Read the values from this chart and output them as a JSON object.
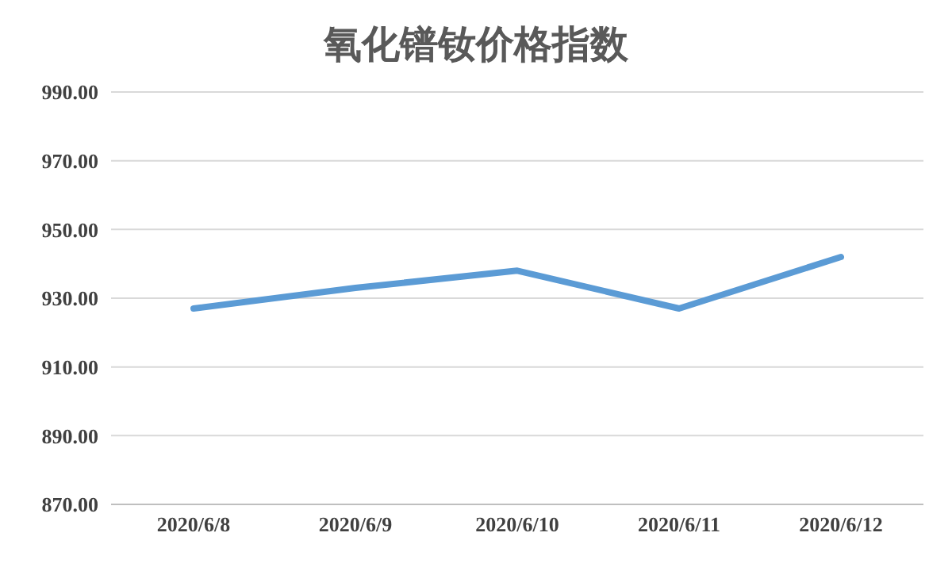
{
  "chart_data": {
    "type": "line",
    "title": "氧化镨钕价格指数",
    "categories": [
      "2020/6/8",
      "2020/6/9",
      "2020/6/10",
      "2020/6/11",
      "2020/6/12"
    ],
    "series": [
      {
        "color": "#5b9bd5",
        "values": [
          927,
          933,
          938,
          927,
          942
        ]
      }
    ],
    "ylim": [
      870,
      990
    ],
    "yticks": [
      {
        "value": 870,
        "label": "870.00"
      },
      {
        "value": 890,
        "label": "890.00"
      },
      {
        "value": 910,
        "label": "910.00"
      },
      {
        "value": 930,
        "label": "930.00"
      },
      {
        "value": 950,
        "label": "950.00"
      },
      {
        "value": 970,
        "label": "970.00"
      },
      {
        "value": 990,
        "label": "990.00"
      }
    ],
    "grid": "y",
    "legend": false,
    "marker": "none",
    "line_style": "solid"
  }
}
